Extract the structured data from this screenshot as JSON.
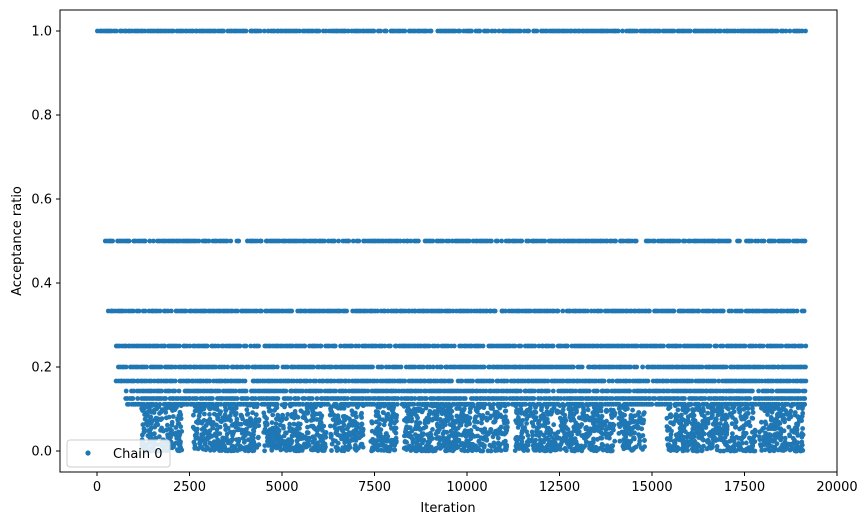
{
  "chart_data": {
    "type": "scatter",
    "xlabel": "Iteration",
    "ylabel": "Acceptance ratio",
    "xlim": [
      -1000,
      20000
    ],
    "ylim": [
      -0.05,
      1.05
    ],
    "x_ticks": [
      0,
      2500,
      5000,
      7500,
      10000,
      12500,
      15000,
      17500,
      20000
    ],
    "x_tick_labels": [
      "0",
      "2500",
      "5000",
      "7500",
      "10000",
      "12500",
      "15000",
      "17500",
      "20000"
    ],
    "y_ticks": [
      0.0,
      0.2,
      0.4,
      0.6,
      0.8,
      1.0
    ],
    "y_tick_labels": [
      "0.0",
      "0.2",
      "0.4",
      "0.6",
      "0.8",
      "1.0"
    ],
    "grid": false,
    "legend": {
      "position": "lower-left",
      "entries": [
        "Chain 0"
      ]
    },
    "series": [
      {
        "name": "Chain 0",
        "color": "#1f77b4",
        "marker": "circle",
        "x_range": [
          0,
          19150
        ],
        "discrete_levels": [
          {
            "y": 1.0,
            "x_start": 0
          },
          {
            "y": 0.5,
            "x_start": 200
          },
          {
            "y": 0.3333,
            "x_start": 300
          },
          {
            "y": 0.25,
            "x_start": 500
          },
          {
            "y": 0.2,
            "x_start": 550
          },
          {
            "y": 0.1667,
            "x_start": 450
          },
          {
            "y": 0.1429,
            "x_start": 700
          },
          {
            "y": 0.125,
            "x_start": 750
          },
          {
            "y": 0.1111,
            "x_start": 800
          }
        ],
        "dense_band": {
          "y_range": [
            0.0,
            0.11
          ],
          "x_segments": [
            [
              1200,
              2300
            ],
            [
              2600,
              4400
            ],
            [
              4500,
              6200
            ],
            [
              6300,
              7200
            ],
            [
              7400,
              8100
            ],
            [
              8300,
              11100
            ],
            [
              11300,
              14000
            ],
            [
              14100,
              14800
            ],
            [
              15400,
              17800
            ],
            [
              17900,
              19100
            ]
          ]
        }
      }
    ]
  }
}
